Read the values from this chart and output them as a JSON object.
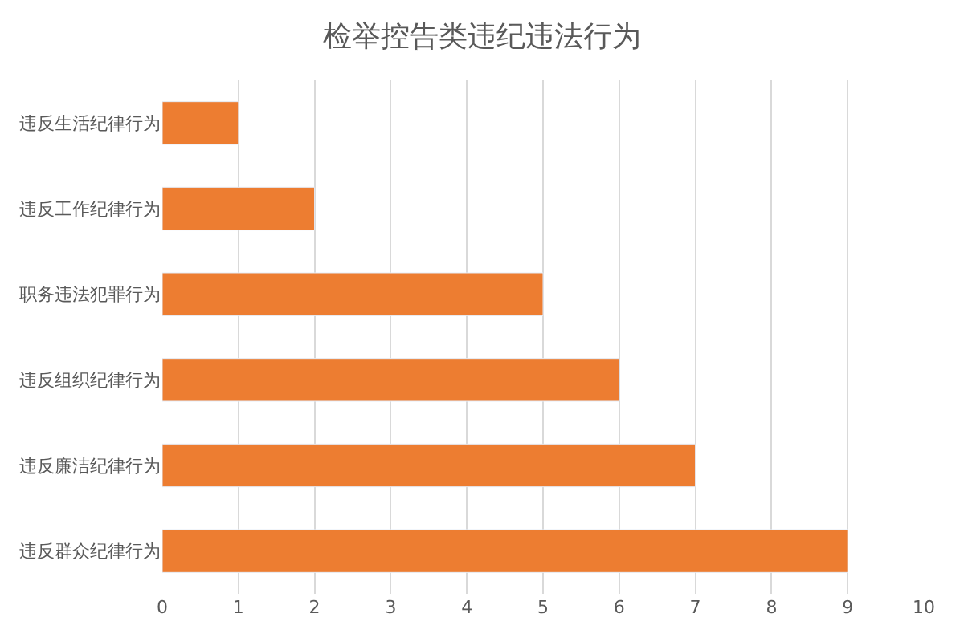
{
  "chart_data": {
    "type": "bar",
    "orientation": "horizontal",
    "title": "检举控告类违纪违法行为",
    "categories": [
      "违反生活纪律行为",
      "违反工作纪律行为",
      "职务违法犯罪行为",
      "违反组织纪律行为",
      "违反廉洁纪律行为",
      "违反群众纪律行为"
    ],
    "values": [
      1,
      2,
      5,
      6,
      7,
      9
    ],
    "color": "#ed7d31",
    "xlim": [
      0,
      10
    ],
    "xticks": [
      0,
      1,
      2,
      3,
      4,
      5,
      6,
      7,
      8,
      9,
      10
    ],
    "grid": "x",
    "legend": false
  }
}
